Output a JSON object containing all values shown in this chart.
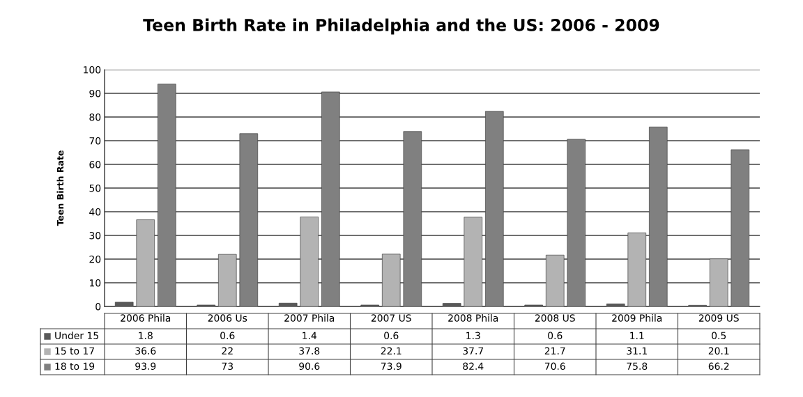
{
  "chart_data": {
    "type": "bar",
    "title": "Teen Birth Rate in Philadelphia and the US: 2006 - 2009",
    "ylabel": "Teen Birth Rate",
    "categories": [
      "2006 Phila",
      "2006 Us",
      "2007 Phila",
      "2007 US",
      "2008 Phila",
      "2008 US",
      "2009 Phila",
      "2009 US"
    ],
    "series": [
      {
        "name": "Under 15",
        "color": "#595959",
        "values": [
          1.8,
          0.6,
          1.4,
          0.6,
          1.3,
          0.6,
          1.1,
          0.5
        ]
      },
      {
        "name": "15 to 17",
        "color": "#b3b3b3",
        "values": [
          36.6,
          22,
          37.8,
          22.1,
          37.7,
          21.7,
          31.1,
          20.1
        ]
      },
      {
        "name": "18 to 19",
        "color": "#808080",
        "values": [
          93.9,
          73,
          90.6,
          73.9,
          82.4,
          70.6,
          75.8,
          66.2
        ]
      }
    ],
    "ylim": [
      0,
      100
    ],
    "yticks": [
      0,
      10,
      20,
      30,
      40,
      50,
      60,
      70,
      80,
      90,
      100
    ],
    "grid": "y",
    "legend": "bottom",
    "data_labels": true
  }
}
